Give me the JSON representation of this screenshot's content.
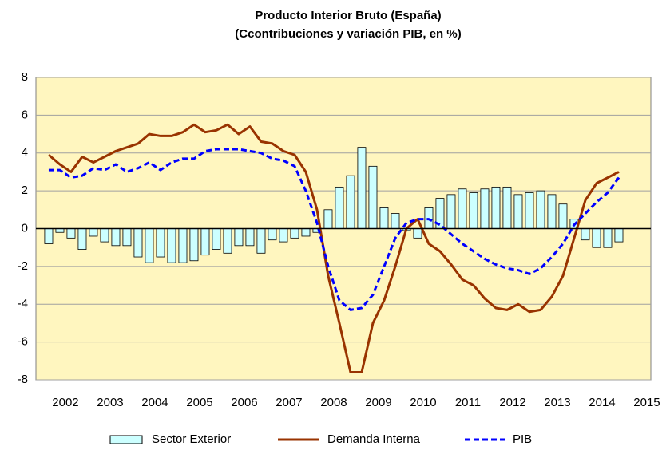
{
  "chart_data": {
    "type": "bar-line",
    "title": [
      "Producto Interior Bruto (España)",
      "(Ccontribuciones y variación PIB, en %)"
    ],
    "x": [
      2002.125,
      2002.375,
      2002.625,
      2002.875,
      2003.125,
      2003.375,
      2003.625,
      2003.875,
      2004.125,
      2004.375,
      2004.625,
      2004.875,
      2005.125,
      2005.375,
      2005.625,
      2005.875,
      2006.125,
      2006.375,
      2006.625,
      2006.875,
      2007.125,
      2007.375,
      2007.625,
      2007.875,
      2008.125,
      2008.375,
      2008.625,
      2008.875,
      2009.125,
      2009.375,
      2009.625,
      2009.875,
      2010.125,
      2010.375,
      2010.625,
      2010.875,
      2011.125,
      2011.375,
      2011.625,
      2011.875,
      2012.125,
      2012.375,
      2012.625,
      2012.875,
      2013.125,
      2013.375,
      2013.625,
      2013.875,
      2014.125,
      2014.375,
      2014.625,
      2014.875
    ],
    "series": [
      {
        "name": "Sector Exterior",
        "kind": "bar",
        "color": "#ccffff",
        "values": [
          -0.8,
          -0.2,
          -0.5,
          -1.1,
          -0.4,
          -0.7,
          -0.9,
          -0.9,
          -1.5,
          -1.8,
          -1.5,
          -1.8,
          -1.8,
          -1.7,
          -1.4,
          -1.1,
          -1.3,
          -0.9,
          -0.9,
          -1.3,
          -0.6,
          -0.7,
          -0.5,
          -0.4,
          -0.2,
          1.0,
          2.2,
          2.8,
          4.3,
          3.3,
          1.1,
          0.8,
          -0.1,
          -0.5,
          1.1,
          1.6,
          1.8,
          2.1,
          1.9,
          2.1,
          2.2,
          2.2,
          1.8,
          1.9,
          2.0,
          1.8,
          1.3,
          0.5,
          -0.6,
          -1.0,
          -1.0,
          -0.7
        ]
      },
      {
        "name": "Demanda Interna",
        "kind": "line",
        "color": "#993300",
        "values": [
          3.9,
          3.4,
          3.0,
          3.8,
          3.5,
          3.8,
          4.1,
          4.3,
          4.5,
          5.0,
          4.9,
          4.9,
          5.1,
          5.5,
          5.1,
          5.2,
          5.5,
          5.0,
          5.4,
          4.6,
          4.5,
          4.1,
          3.9,
          3.0,
          1.0,
          -2.5,
          -5.0,
          -7.6,
          -7.6,
          -5.0,
          -3.8,
          -2.0,
          0.0,
          0.5,
          -0.8,
          -1.2,
          -1.9,
          -2.7,
          -3.0,
          -3.7,
          -4.2,
          -4.3,
          -4.0,
          -4.4,
          -4.3,
          -3.6,
          -2.5,
          -0.5,
          1.5,
          2.4,
          2.7,
          3.0
        ]
      },
      {
        "name": "PIB",
        "kind": "dashed",
        "color": "#0000ff",
        "values": [
          3.1,
          3.1,
          2.7,
          2.8,
          3.2,
          3.1,
          3.4,
          3.0,
          3.2,
          3.5,
          3.1,
          3.5,
          3.7,
          3.7,
          4.1,
          4.2,
          4.2,
          4.2,
          4.1,
          4.0,
          3.7,
          3.6,
          3.3,
          2.0,
          0.3,
          -2.0,
          -3.8,
          -4.3,
          -4.2,
          -3.5,
          -2.0,
          -0.5,
          0.3,
          0.5,
          0.5,
          0.2,
          -0.3,
          -0.8,
          -1.2,
          -1.6,
          -1.9,
          -2.1,
          -2.2,
          -2.4,
          -2.1,
          -1.5,
          -0.8,
          0.2,
          0.8,
          1.4,
          1.9,
          2.7
        ]
      }
    ],
    "xlim": [
      2001.84,
      2015.59
    ],
    "xticks": [
      {
        "value": 2002.5,
        "label": "2002"
      },
      {
        "value": 2003.5,
        "label": "2003"
      },
      {
        "value": 2004.5,
        "label": "2004"
      },
      {
        "value": 2005.5,
        "label": "2005"
      },
      {
        "value": 2006.5,
        "label": "2006"
      },
      {
        "value": 2007.5,
        "label": "2007"
      },
      {
        "value": 2008.5,
        "label": "2008"
      },
      {
        "value": 2009.5,
        "label": "2009"
      },
      {
        "value": 2010.5,
        "label": "2010"
      },
      {
        "value": 2011.5,
        "label": "2011"
      },
      {
        "value": 2012.5,
        "label": "2012"
      },
      {
        "value": 2013.5,
        "label": "2013"
      },
      {
        "value": 2014.5,
        "label": "2014"
      },
      {
        "value": 2015.5,
        "label": "2015"
      }
    ],
    "ylim": [
      -8,
      8
    ],
    "yticks": [
      -8,
      -6,
      -4,
      -2,
      0,
      2,
      4,
      6,
      8
    ],
    "grid": true,
    "legend": "bottom"
  }
}
